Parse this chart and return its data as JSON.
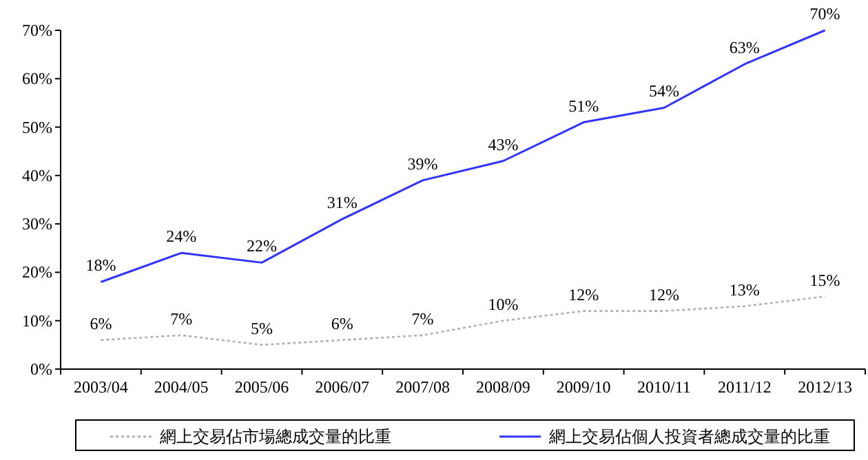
{
  "chart_data": {
    "type": "line",
    "categories": [
      "2003/04",
      "2004/05",
      "2005/06",
      "2006/07",
      "2007/08",
      "2008/09",
      "2009/10",
      "2010/11",
      "2011/12",
      "2012/13"
    ],
    "series": [
      {
        "name": "網上交易佔市場總成交量的比重",
        "color": "#b0b0b0",
        "line_style": "dotted",
        "values": [
          6,
          7,
          5,
          6,
          7,
          10,
          12,
          12,
          13,
          15
        ],
        "value_labels": [
          "6%",
          "7%",
          "5%",
          "6%",
          "7%",
          "10%",
          "12%",
          "12%",
          "13%",
          "15%"
        ]
      },
      {
        "name": "網上交易佔個人投資者總成交量的比重",
        "color": "#3333ff",
        "line_style": "solid",
        "values": [
          18,
          24,
          22,
          31,
          39,
          43,
          51,
          54,
          63,
          70
        ],
        "value_labels": [
          "18%",
          "24%",
          "22%",
          "31%",
          "39%",
          "43%",
          "51%",
          "54%",
          "63%",
          "70%"
        ]
      }
    ],
    "ylim": [
      0,
      70
    ],
    "yticks": [
      {
        "value": 0,
        "label": "0%"
      },
      {
        "value": 10,
        "label": "10%"
      },
      {
        "value": 20,
        "label": "20%"
      },
      {
        "value": 30,
        "label": "30%"
      },
      {
        "value": 40,
        "label": "40%"
      },
      {
        "value": 50,
        "label": "50%"
      },
      {
        "value": 60,
        "label": "60%"
      },
      {
        "value": 70,
        "label": "70%"
      }
    ],
    "grid": false,
    "legend": "bottom",
    "marker": "none"
  }
}
